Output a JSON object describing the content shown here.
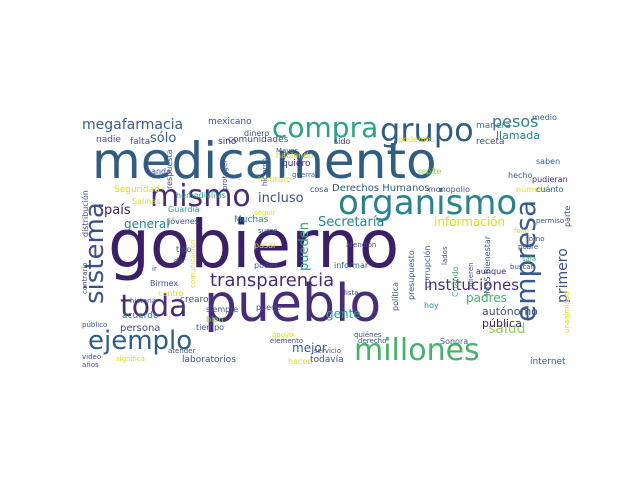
{
  "palette": {
    "navy": "#2f5d84",
    "purple": "#472c7a",
    "deep": "#3b1f68",
    "teal": "#27848e",
    "sea": "#2aa383",
    "green": "#44b36a",
    "lime": "#8fd14f",
    "yellow": "#d8e219",
    "indigo": "#3f4e8c",
    "slate": "#365c8d"
  },
  "words": [
    {
      "text": "medicamento"
    },
    {
      "text": "gobierno"
    },
    {
      "text": "pueblo"
    },
    {
      "text": "organismo"
    },
    {
      "text": "grupo"
    },
    {
      "text": "compra"
    },
    {
      "text": "mismo"
    },
    {
      "text": "millones"
    },
    {
      "text": "ejemplo"
    },
    {
      "text": "toda"
    },
    {
      "text": "empresa"
    },
    {
      "text": "sistema"
    },
    {
      "text": "transparencia"
    },
    {
      "text": "megafarmacia"
    },
    {
      "text": "pesos"
    },
    {
      "text": "instituciones"
    },
    {
      "text": "salud"
    },
    {
      "text": "primero"
    },
    {
      "text": "sólo"
    },
    {
      "text": "país"
    },
    {
      "text": "incluso"
    },
    {
      "text": "general"
    },
    {
      "text": "pueden"
    },
    {
      "text": "Secretaría"
    },
    {
      "text": "información"
    },
    {
      "text": "gente"
    },
    {
      "text": "mejor"
    },
    {
      "text": "padres"
    },
    {
      "text": "autónomo"
    },
    {
      "text": "pública"
    },
    {
      "text": "Derechos Humanos"
    },
    {
      "text": "llamada"
    },
    {
      "text": "manera"
    },
    {
      "text": "receta"
    },
    {
      "text": "saben"
    },
    {
      "text": "pudieran"
    },
    {
      "text": "medio"
    },
    {
      "text": "comunidades"
    },
    {
      "text": "laboratorios"
    },
    {
      "text": "persona"
    },
    {
      "text": "Muchas"
    },
    {
      "text": "Seguridad"
    },
    {
      "text": "respuesta"
    },
    {
      "text": "nadie"
    },
    {
      "text": "falta"
    },
    {
      "text": "sino"
    },
    {
      "text": "mexicano"
    },
    {
      "text": "dinero"
    },
    {
      "text": "quiero"
    },
    {
      "text": "sido"
    },
    {
      "text": "podemos"
    },
    {
      "text": "repite"
    },
    {
      "text": "número"
    },
    {
      "text": "cuánto"
    },
    {
      "text": "hecho"
    },
    {
      "text": "parte"
    },
    {
      "text": "IMSS Bienestar"
    },
    {
      "text": "monopolio"
    },
    {
      "text": "lados"
    },
    {
      "text": "quieren"
    },
    {
      "text": "Cuándo"
    },
    {
      "text": "corrupción"
    },
    {
      "text": "presupuesto"
    },
    {
      "text": "política"
    },
    {
      "text": "informar"
    },
    {
      "text": "lista"
    },
    {
      "text": "atención"
    },
    {
      "text": "poder"
    },
    {
      "text": "pasar"
    },
    {
      "text": "surge"
    },
    {
      "text": "seguir"
    },
    {
      "text": "instituto"
    },
    {
      "text": "guerra"
    },
    {
      "text": "Mayor"
    },
    {
      "text": "hablando"
    },
    {
      "text": "hicieron"
    },
    {
      "text": "proteger"
    },
    {
      "text": "hemodiálisis"
    },
    {
      "text": "banda"
    },
    {
      "text": "Salinas"
    },
    {
      "text": "contrario"
    },
    {
      "text": "distribución"
    },
    {
      "text": "Guardia"
    },
    {
      "text": "jóvenes"
    },
    {
      "text": "acuerdo"
    },
    {
      "text": "centro"
    },
    {
      "text": "Birmex"
    },
    {
      "text": "tipo"
    },
    {
      "text": "dar"
    },
    {
      "text": "ir"
    },
    {
      "text": "comunicación"
    },
    {
      "text": "crearon"
    },
    {
      "text": "siempre"
    },
    {
      "text": "bien"
    },
    {
      "text": "tiempo"
    },
    {
      "text": "puedo"
    },
    {
      "text": "historia"
    },
    {
      "text": "público"
    },
    {
      "text": "video"
    },
    {
      "text": "años"
    },
    {
      "text": "significa"
    },
    {
      "text": "atender"
    },
    {
      "text": "elemento"
    },
    {
      "text": "apoyo"
    },
    {
      "text": "derecho"
    },
    {
      "text": "servicio"
    },
    {
      "text": "hacen"
    },
    {
      "text": "todavía"
    },
    {
      "text": "quiénes"
    },
    {
      "text": "hoy"
    },
    {
      "text": "aunque"
    },
    {
      "text": "buscar"
    },
    {
      "text": "sala"
    },
    {
      "text": "pobre"
    },
    {
      "text": "torno"
    },
    {
      "text": "folio"
    },
    {
      "text": "permiso"
    },
    {
      "text": "internet"
    },
    {
      "text": "Sonora"
    },
    {
      "text": "unanimidad"
    },
    {
      "text": "cosa"
    }
  ]
}
